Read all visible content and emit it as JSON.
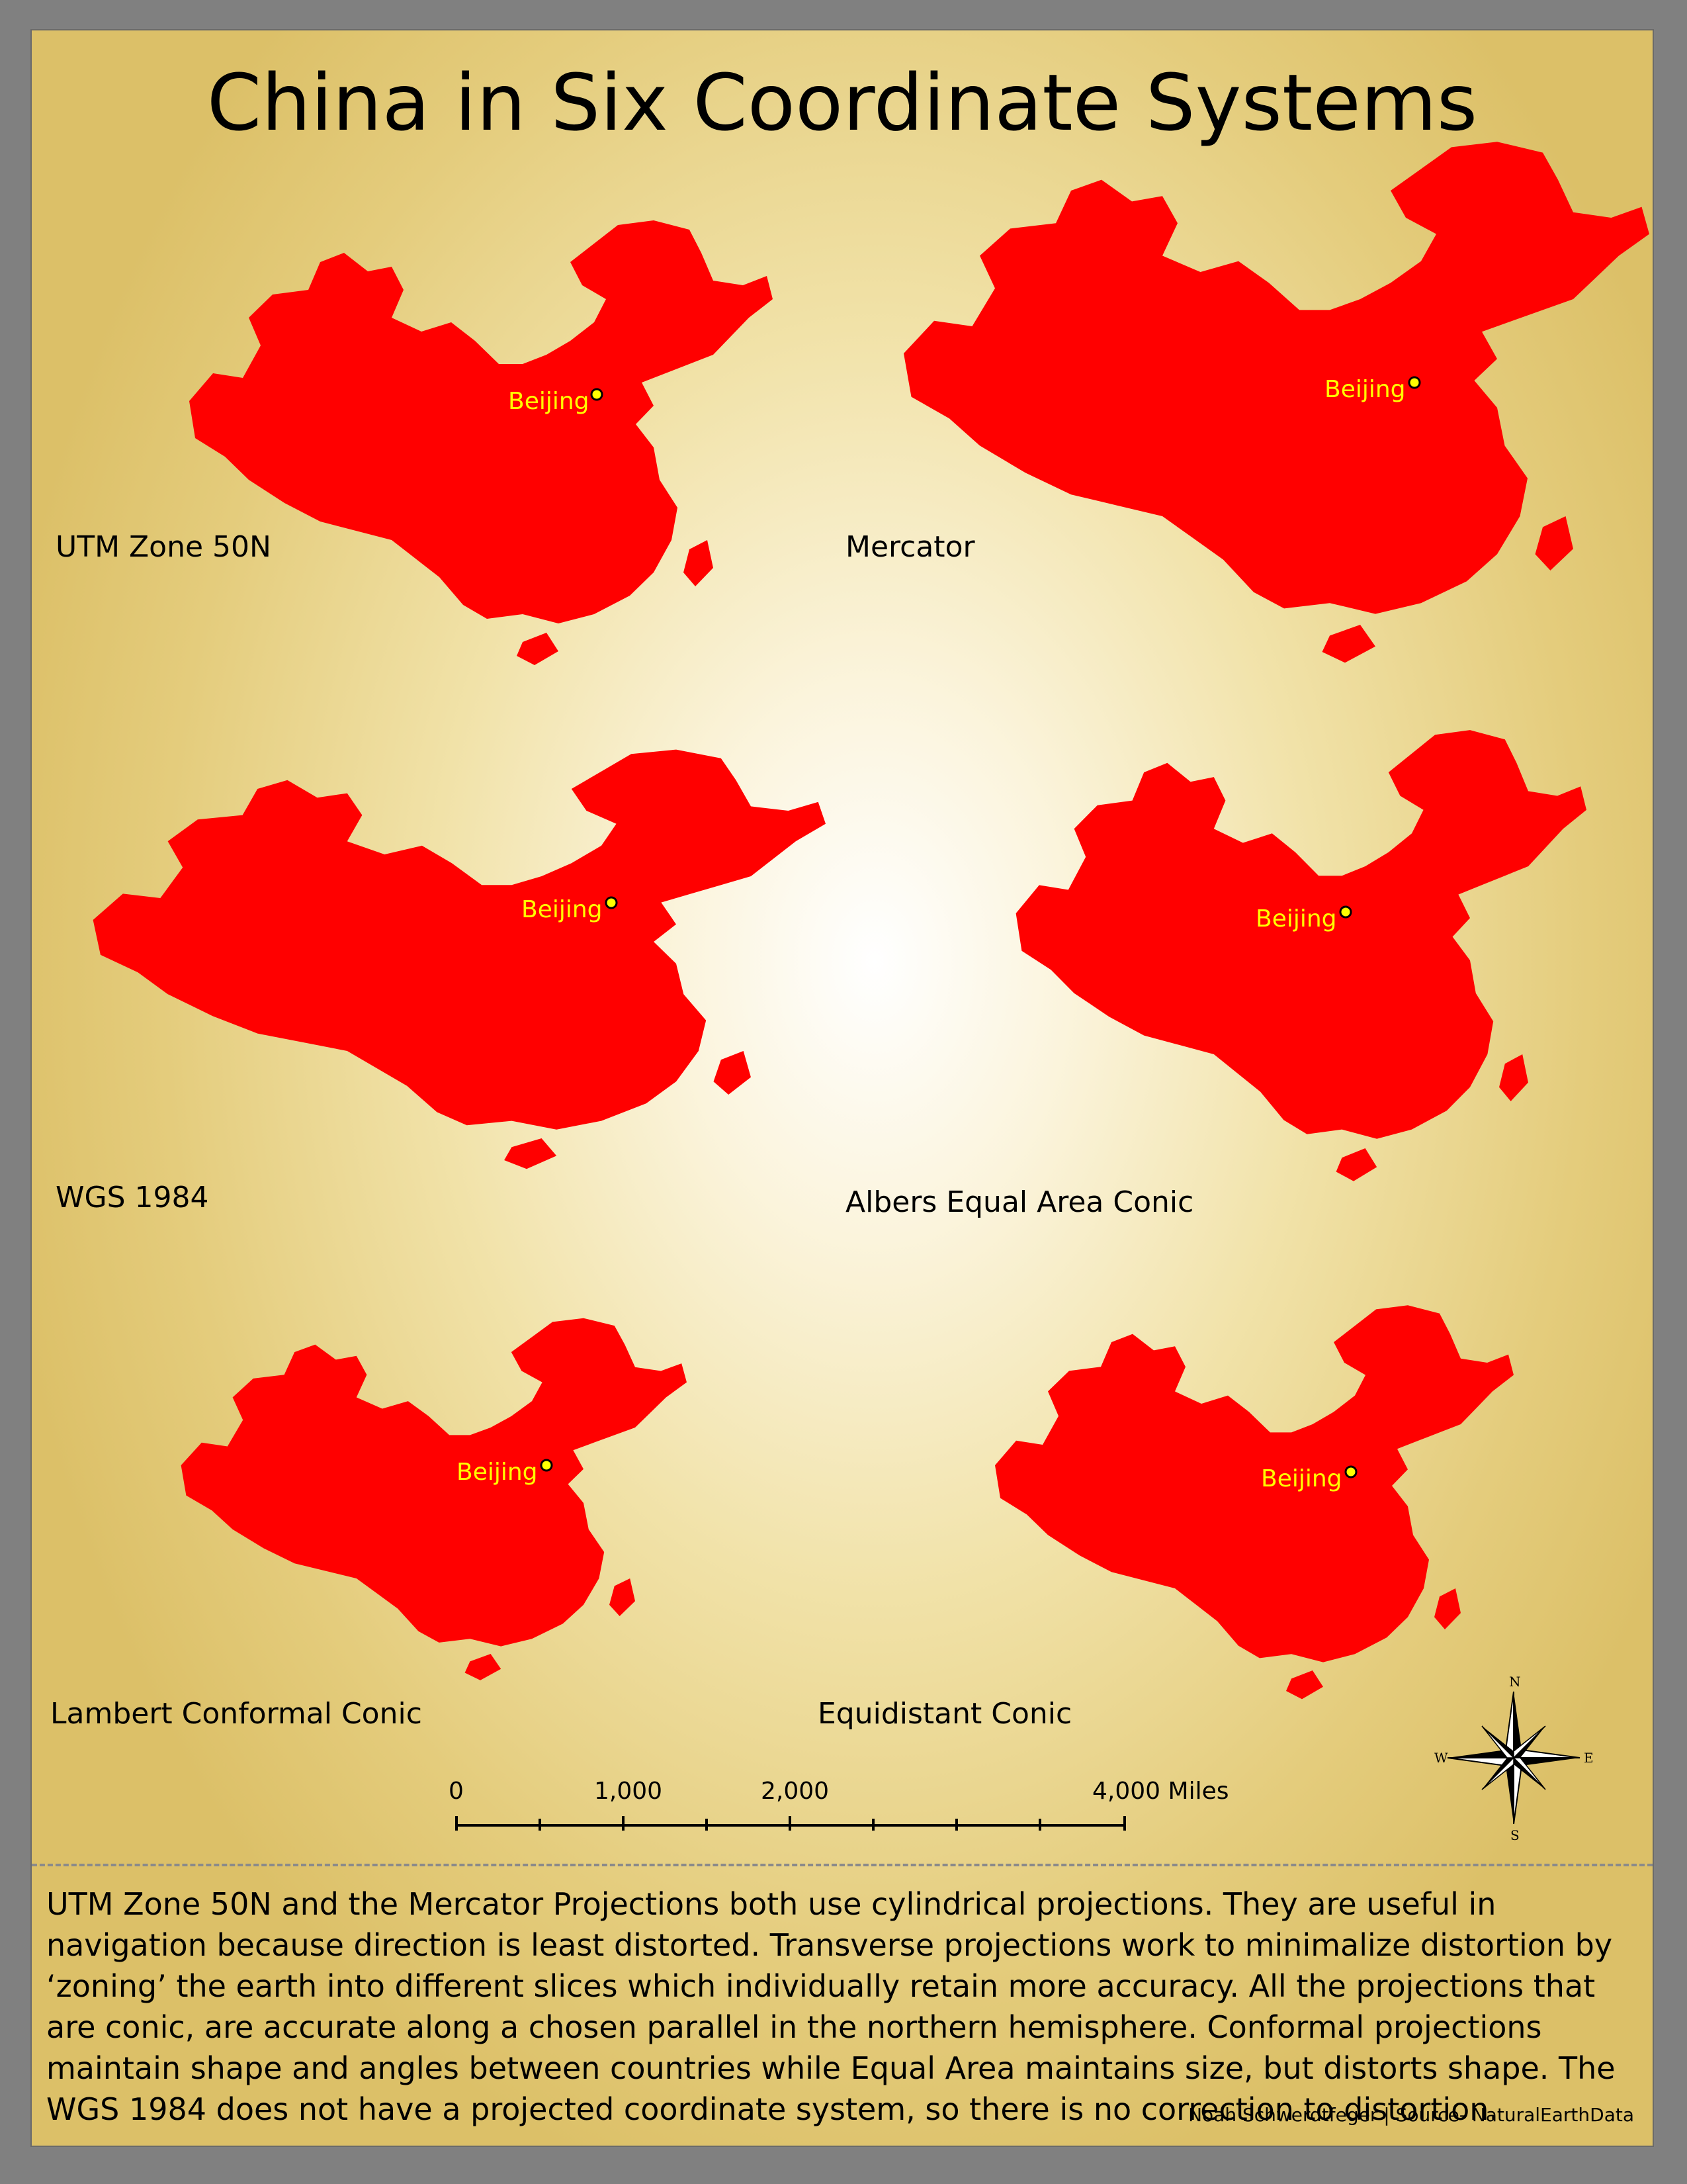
{
  "title": "China in Six Coordinate Systems",
  "city_label": "Beijing",
  "country_color": "#ff0000",
  "city_color": "#ffff00",
  "projections": [
    {
      "name": "UTM Zone 50N"
    },
    {
      "name": "Mercator"
    },
    {
      "name": "WGS 1984"
    },
    {
      "name": "Albers Equal Area Conic"
    },
    {
      "name": "Lambert Conformal Conic"
    },
    {
      "name": "Equidistant Conic"
    }
  ],
  "scale_bar": {
    "ticks": [
      "0",
      "1,000",
      "2,000",
      "4,000 Miles"
    ],
    "max_value": 4000,
    "unit": "Miles"
  },
  "north_arrow": {
    "n": "N",
    "s": "S",
    "e": "E",
    "w": "W"
  },
  "description": " UTM Zone 50N and the Mercator Projections both use cylindrical projections. They are useful in navigation because direction is least distorted. Transverse projections work to minimalize distortion by ‘zoning’ the earth into different slices which individually retain more accuracy. All the projections that are conic, are accurate along a chosen parallel in the northern hemisphere. Conformal projections maintain shape and angles between countries while Equal Area maintains size, but distorts shape. The WGS 1984 does not have a projected coordinate system, so there is no correction to distortion.",
  "credit": "Noah Schwerdtfeger | Source- NaturalEarthData"
}
